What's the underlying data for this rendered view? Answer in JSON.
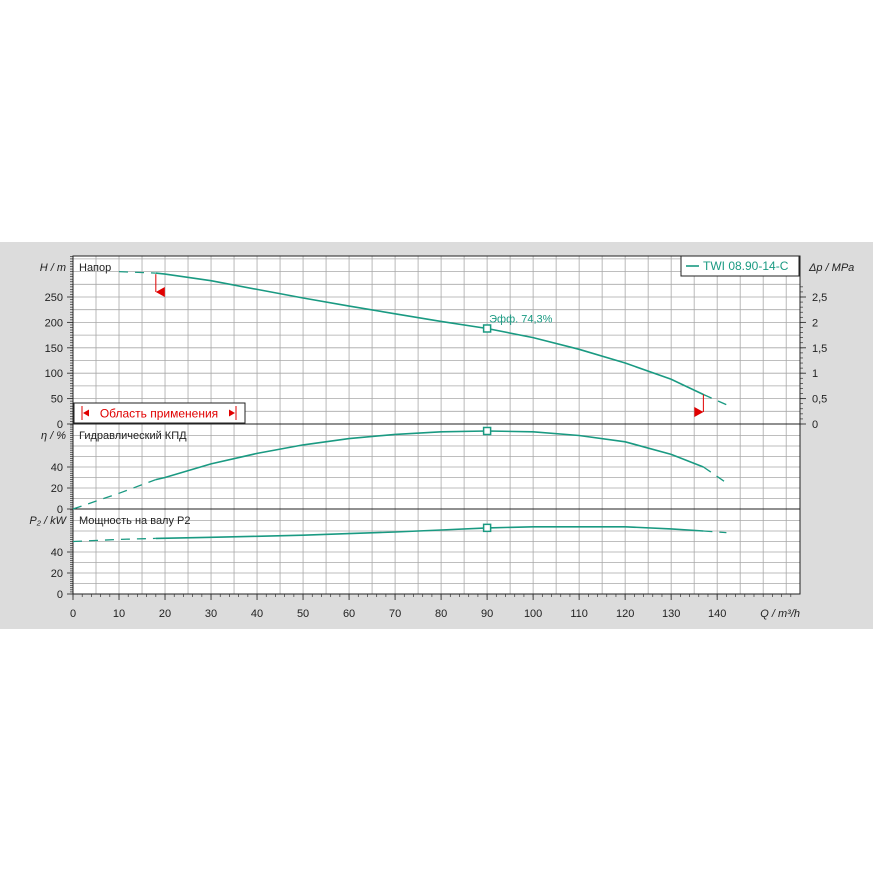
{
  "chart_data": [
    {
      "type": "line",
      "panel": "head",
      "title": "Напор",
      "ylabel": "H / m",
      "y2label": "Δp / MPa",
      "ylim": [
        0,
        300
      ],
      "y2lim": [
        0,
        3
      ],
      "yticks": [
        0,
        50,
        100,
        150,
        200,
        250
      ],
      "y2ticks": [
        "0",
        "0,5",
        "1",
        "1,5",
        "2",
        "2,5"
      ],
      "series": [
        {
          "name": "TWI 08.90-14-C",
          "x": [
            18,
            20,
            30,
            40,
            50,
            60,
            70,
            80,
            90,
            100,
            110,
            120,
            130,
            137
          ],
          "y": [
            297,
            295,
            282,
            265,
            248,
            232,
            217,
            202,
            188,
            170,
            147,
            120,
            88,
            58
          ]
        }
      ],
      "extrapolated_low": {
        "x": [
          10,
          18
        ],
        "y": [
          300,
          297
        ]
      },
      "extrapolated_high": {
        "x": [
          137,
          142
        ],
        "y": [
          58,
          38
        ]
      },
      "duty_point": {
        "x": 90,
        "y": 188,
        "label": "Эфф.  74,3%"
      },
      "application_range": {
        "label": "Область применения",
        "min": 18,
        "max": 137
      }
    },
    {
      "type": "line",
      "panel": "efficiency",
      "title": "Гидравлический КПД",
      "ylabel": "η / %",
      "ylim": [
        0,
        80
      ],
      "yticks": [
        0,
        20,
        40
      ],
      "series": [
        {
          "x": [
            18,
            20,
            30,
            40,
            50,
            60,
            70,
            80,
            90,
            100,
            110,
            120,
            130,
            137
          ],
          "y": [
            28,
            30,
            43,
            53,
            61,
            67,
            71,
            73.5,
            74.3,
            73.5,
            70,
            64,
            52,
            40
          ]
        }
      ],
      "extrapolated_low": {
        "x": [
          0,
          10,
          18
        ],
        "y": [
          0,
          15,
          28
        ]
      },
      "extrapolated_high": {
        "x": [
          137,
          142
        ],
        "y": [
          40,
          25
        ]
      },
      "duty_point": {
        "x": 90,
        "y": 74.3
      }
    },
    {
      "type": "line",
      "panel": "power",
      "title": "Мощность на валу P2",
      "ylabel": "P₂ / kW",
      "ylim": [
        0,
        70
      ],
      "yticks": [
        0,
        20,
        40
      ],
      "series": [
        {
          "x": [
            18,
            30,
            40,
            50,
            60,
            70,
            80,
            90,
            100,
            110,
            120,
            130,
            137
          ],
          "y": [
            53,
            54,
            55,
            56,
            57.5,
            59,
            61,
            63,
            64,
            64,
            64,
            62,
            60
          ]
        }
      ],
      "extrapolated_low": {
        "x": [
          0,
          10,
          18
        ],
        "y": [
          50,
          52,
          53
        ]
      },
      "extrapolated_high": {
        "x": [
          137,
          142
        ],
        "y": [
          60,
          58.5
        ]
      },
      "duty_point": {
        "x": 90,
        "y": 63
      }
    }
  ],
  "xaxis": {
    "label": "Q / m³/h",
    "xlim": [
      0,
      158
    ],
    "ticks": [
      0,
      10,
      20,
      30,
      40,
      50,
      60,
      70,
      80,
      90,
      100,
      110,
      120,
      130,
      140
    ]
  },
  "legend": {
    "position": "top-right",
    "label": "TWI 08.90-14-C"
  },
  "colors": {
    "curve": "#1a9a82",
    "marker": "#e00000",
    "grid": "#a8a8a8",
    "background": "#dcdcdc",
    "plot_bg": "#ffffff"
  }
}
